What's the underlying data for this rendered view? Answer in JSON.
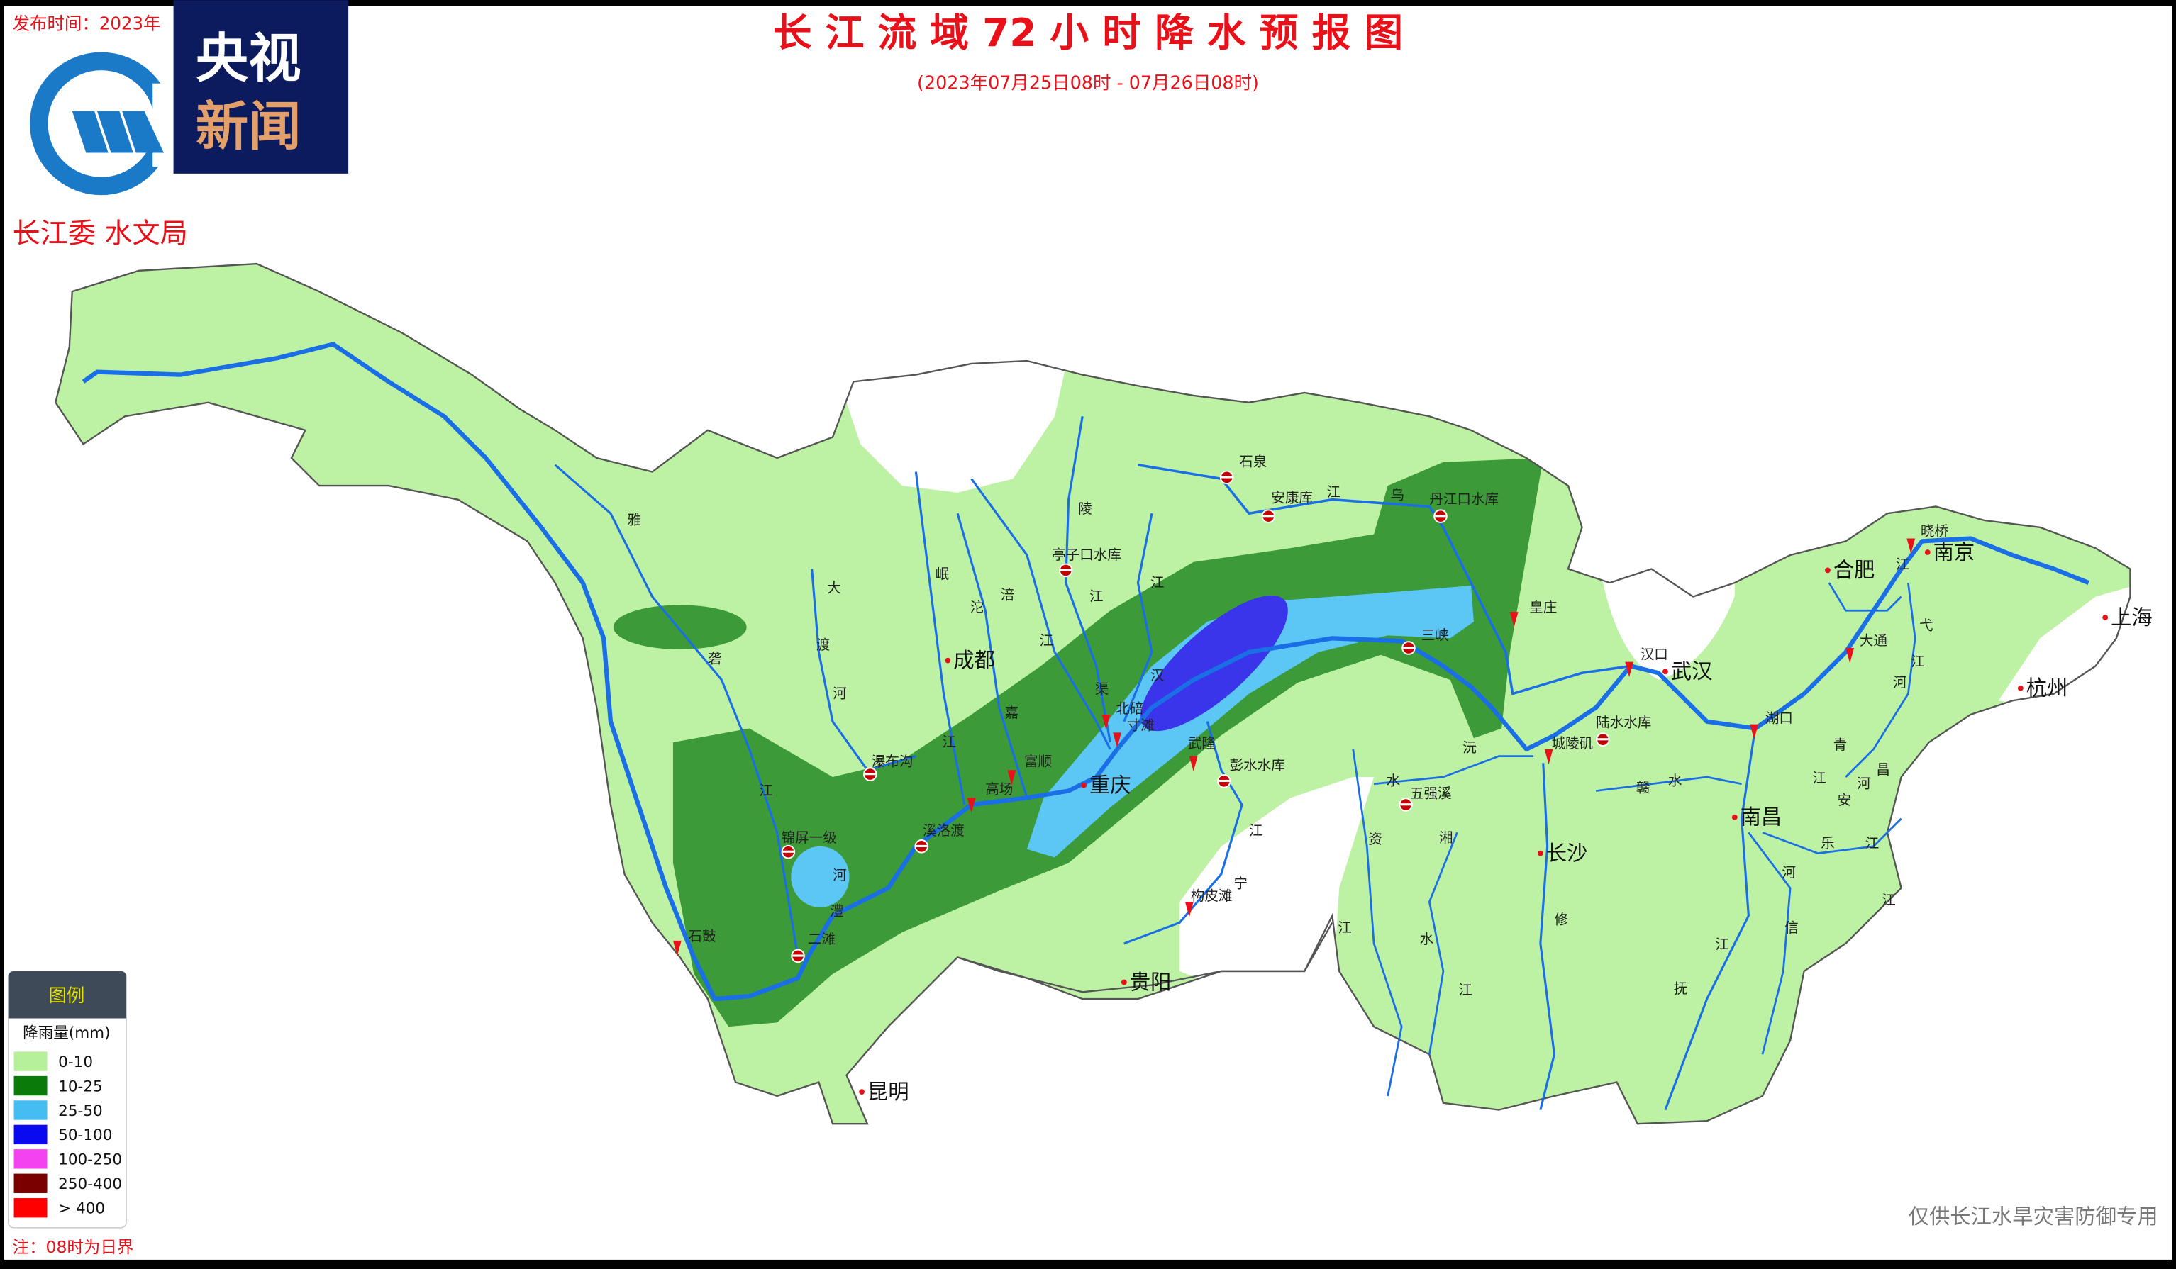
{
  "header": {
    "publish_time_label": "发布时间：2023年",
    "title": "长 江 流 域 72 小 时 降 水 预 报 图",
    "subtitle": "(2023年07月25日08时  -  07月26日08时)",
    "agency": "长江委  水文局",
    "cctv_logo_text": [
      "央视",
      "新闻"
    ]
  },
  "legend": {
    "header": "图例",
    "unit_label": "降雨量(mm)",
    "items": [
      {
        "label": "0-10",
        "color": "#b6f09a"
      },
      {
        "label": "10-25",
        "color": "#0a7a0a"
      },
      {
        "label": "25-50",
        "color": "#45bdf2"
      },
      {
        "label": "50-100",
        "color": "#0a0af0"
      },
      {
        "label": "100-250",
        "color": "#f542f0"
      },
      {
        "label": "250-400",
        "color": "#7a0000"
      },
      {
        "label": "> 400",
        "color": "#ff0000"
      }
    ]
  },
  "note": "注：08时为日界",
  "disclaimer": "仅供长江水旱灾害防御专用",
  "map": {
    "zone_colors": {
      "light_green": "#bdf2a4",
      "dark_green": "#3c9a38",
      "light_blue": "#5cc6f5",
      "dark_blue": "#3a34ea",
      "river": "#1a6ee6",
      "border": "#555555"
    },
    "cities": [
      "成都",
      "重庆",
      "贵阳",
      "昆明",
      "长沙",
      "武汉",
      "南昌",
      "合肥",
      "南京",
      "上海",
      "杭州"
    ],
    "stations": [
      "石泉",
      "安康库",
      "丹江口水库",
      "亭子口水库",
      "皇庄",
      "三峡",
      "北碚",
      "寸滩",
      "武隆",
      "彭水水库",
      "富顺",
      "高场",
      "瀑布沟",
      "溪洛渡",
      "锦屏一级",
      "二滩",
      "石鼓",
      "构皮滩",
      "五强溪",
      "汉口",
      "城陵矶",
      "陆水水库",
      "湖口",
      "大通",
      "晓桥"
    ],
    "river_chars": [
      "雅",
      "砻",
      "江",
      "大",
      "渡",
      "河",
      "岷",
      "沱",
      "江",
      "涪",
      "江",
      "嘉",
      "陵",
      "江",
      "渠",
      "江",
      "汉",
      "江",
      "乌",
      "江",
      "宁",
      "河",
      "澧",
      "水",
      "沅",
      "江",
      "资",
      "水",
      "湘",
      "江",
      "修",
      "水",
      "赣",
      "江",
      "抚",
      "河",
      "信",
      "江",
      "乐",
      "安",
      "河",
      "昌",
      "江",
      "青",
      "弋",
      "江",
      "河",
      "江",
      "江"
    ]
  }
}
